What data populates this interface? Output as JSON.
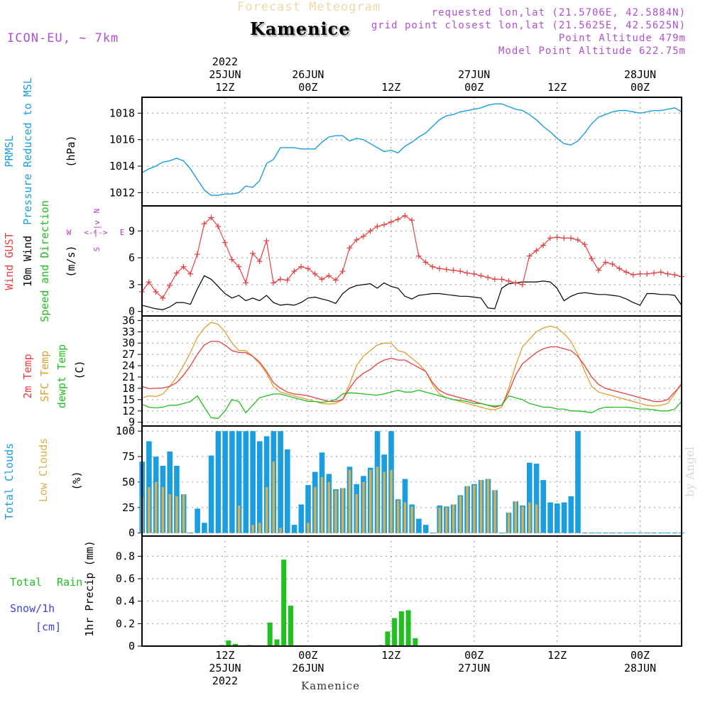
{
  "header": {
    "model": "ICON-EU, ~ 7km",
    "product": "Forecast Meteogram",
    "location": "Kamenice",
    "requested": "requested lon,lat (21.5706E, 42.5884N)",
    "gridpoint": "grid point closest lon,lat (21.5625E, 42.5625N)",
    "point_altitude": "Point Altitude 479m",
    "model_altitude": "Model Point Altitude 622.75m",
    "footer_location": "Kamenice",
    "watermark": "by Angel"
  },
  "time_axis": {
    "start_hour": 0,
    "end_hour": 78,
    "unit": "hours from 2022-06-25 00Z",
    "top_ticks": [
      {
        "hour": 12,
        "lines": [
          "2022",
          "25JUN",
          "12Z"
        ]
      },
      {
        "hour": 24,
        "lines": [
          "26JUN",
          "00Z"
        ]
      },
      {
        "hour": 36,
        "lines": [
          "12Z"
        ]
      },
      {
        "hour": 48,
        "lines": [
          "27JUN",
          "00Z"
        ]
      },
      {
        "hour": 60,
        "lines": [
          "12Z"
        ]
      },
      {
        "hour": 72,
        "lines": [
          "28JUN",
          "00Z"
        ]
      }
    ],
    "bottom_ticks": [
      {
        "hour": 12,
        "lines": [
          "12Z",
          "25JUN",
          "2022"
        ]
      },
      {
        "hour": 24,
        "lines": [
          "00Z",
          "26JUN"
        ]
      },
      {
        "hour": 36,
        "lines": [
          "12Z"
        ]
      },
      {
        "hour": 48,
        "lines": [
          "00Z",
          "27JUN"
        ]
      },
      {
        "hour": 60,
        "lines": [
          "12Z"
        ]
      },
      {
        "hour": 72,
        "lines": [
          "00Z",
          "28JUN"
        ]
      }
    ]
  },
  "chart_data": [
    {
      "type": "line",
      "name": "pressure",
      "labels": {
        "title1": "PRMSL",
        "title2": "Pressure Reduced to MSL",
        "unit": "(hPa)"
      },
      "ylim": [
        1011,
        1019.2
      ],
      "yticks": [
        1012,
        1014,
        1016,
        1018
      ],
      "colors": {
        "line": "#1a9ee0"
      },
      "x": [
        0,
        1,
        2,
        3,
        4,
        5,
        6,
        7,
        8,
        9,
        10,
        11,
        12,
        13,
        14,
        15,
        16,
        17,
        18,
        19,
        20,
        21,
        22,
        23,
        24,
        25,
        26,
        27,
        28,
        29,
        30,
        31,
        32,
        33,
        34,
        35,
        36,
        37,
        38,
        39,
        40,
        41,
        42,
        43,
        44,
        45,
        46,
        47,
        48,
        49,
        50,
        51,
        52,
        53,
        54,
        55,
        56,
        57,
        58,
        59,
        60,
        61,
        62,
        63,
        64,
        65,
        66,
        67,
        68,
        69,
        70,
        71,
        72,
        73,
        74,
        75,
        76,
        77,
        78
      ],
      "y": [
        1013.5,
        1013.8,
        1014.0,
        1014.3,
        1014.4,
        1014.6,
        1014.4,
        1013.8,
        1013.0,
        1012.2,
        1011.8,
        1011.8,
        1011.9,
        1011.9,
        1012.0,
        1012.5,
        1012.4,
        1012.9,
        1014.2,
        1014.5,
        1015.4,
        1015.4,
        1015.4,
        1015.3,
        1015.3,
        1015.3,
        1015.8,
        1016.2,
        1016.3,
        1016.3,
        1015.9,
        1016.1,
        1016.0,
        1015.7,
        1015.4,
        1015.1,
        1015.2,
        1015.0,
        1015.5,
        1015.8,
        1016.2,
        1016.5,
        1017.0,
        1017.5,
        1017.8,
        1017.9,
        1018.1,
        1018.2,
        1018.3,
        1018.4,
        1018.6,
        1018.7,
        1018.7,
        1018.5,
        1018.3,
        1018.2,
        1017.9,
        1017.5,
        1017.0,
        1016.6,
        1016.1,
        1015.7,
        1015.6,
        1015.9,
        1016.5,
        1017.2,
        1017.7,
        1017.9,
        1018.1,
        1018.2,
        1018.2,
        1018.1,
        1018.0,
        1018.1,
        1018.2,
        1018.2,
        1018.3,
        1018.4,
        1018.1
      ]
    },
    {
      "type": "line",
      "name": "wind",
      "labels": {
        "title1": "Wind GUST",
        "title2": "10m Wind",
        "title3": "Speed and Direction",
        "unit": "(m/s)",
        "compass_w": "W",
        "compass_e": "E",
        "compass_n": "N",
        "compass_s": "S",
        "compass_mid": "<-|->",
        "compass_v": "^|v"
      },
      "ylim": [
        -0.5,
        11.8
      ],
      "yticks": [
        0,
        3,
        6,
        9
      ],
      "colors": {
        "gust": "#e84040",
        "wind": "#000000",
        "compass": "#b040c0"
      },
      "x": [
        0,
        1,
        2,
        3,
        4,
        5,
        6,
        7,
        8,
        9,
        10,
        11,
        12,
        13,
        14,
        15,
        16,
        17,
        18,
        19,
        20,
        21,
        22,
        23,
        24,
        25,
        26,
        27,
        28,
        29,
        30,
        31,
        32,
        33,
        34,
        35,
        36,
        37,
        38,
        39,
        40,
        41,
        42,
        43,
        44,
        45,
        46,
        47,
        48,
        49,
        50,
        51,
        52,
        53,
        54,
        55,
        56,
        57,
        58,
        59,
        60,
        61,
        62,
        63,
        64,
        65,
        66,
        67,
        68,
        69,
        70,
        71,
        72,
        73,
        74,
        75,
        76,
        77,
        78
      ],
      "gust": [
        2.2,
        3.3,
        2.2,
        1.5,
        2.9,
        4.3,
        5.0,
        4.2,
        6.4,
        9.8,
        10.5,
        9.5,
        7.7,
        5.8,
        5.0,
        3.2,
        6.5,
        5.6,
        7.9,
        3.2,
        3.6,
        3.5,
        4.5,
        5.0,
        4.8,
        4.2,
        3.6,
        4.0,
        3.5,
        4.5,
        7.1,
        8.0,
        8.4,
        9.0,
        9.5,
        9.7,
        10.0,
        10.3,
        10.7,
        10.2,
        6.2,
        5.5,
        5.0,
        4.8,
        4.7,
        4.6,
        4.5,
        4.3,
        4.2,
        4.0,
        3.8,
        3.6,
        3.6,
        3.4,
        3.2,
        3.0,
        6.2,
        6.8,
        7.4,
        8.2,
        8.3,
        8.2,
        8.2,
        8.0,
        7.5,
        5.9,
        4.6,
        5.5,
        5.3,
        4.8,
        4.4,
        4.1,
        4.2,
        4.2,
        4.3,
        4.4,
        4.2,
        4.1,
        3.9
      ],
      "wind": [
        0.7,
        0.5,
        0.3,
        0.2,
        0.5,
        1.0,
        1.0,
        0.8,
        2.5,
        4.0,
        3.6,
        2.8,
        2.0,
        1.5,
        1.8,
        1.2,
        1.5,
        1.2,
        1.8,
        1.0,
        0.7,
        0.8,
        0.7,
        1.0,
        1.5,
        1.6,
        1.4,
        1.2,
        0.9,
        2.0,
        2.6,
        2.9,
        3.0,
        3.1,
        2.6,
        3.2,
        2.8,
        2.6,
        1.7,
        1.4,
        1.8,
        1.9,
        2.0,
        2.0,
        1.9,
        1.8,
        1.7,
        1.7,
        1.6,
        1.5,
        0.4,
        0.3,
        2.6,
        3.1,
        3.2,
        3.3,
        3.3,
        3.3,
        3.4,
        3.3,
        2.6,
        1.2,
        1.7,
        2.0,
        2.1,
        2.0,
        1.9,
        1.9,
        1.8,
        1.7,
        1.4,
        1.0,
        0.7,
        2.0,
        2.0,
        1.9,
        1.9,
        1.8,
        0.7
      ]
    },
    {
      "type": "line",
      "name": "temperature",
      "labels": {
        "title1": "2m Temp",
        "title2": "SFC Temp",
        "title3": "dewpt Temp",
        "unit": "(C)"
      },
      "ylim": [
        8,
        37.2
      ],
      "yticks": [
        9,
        12,
        15,
        18,
        21,
        24,
        27,
        30,
        33,
        36
      ],
      "colors": {
        "t2m": "#e84040",
        "tsfc": "#e0a030",
        "dewpt": "#20c020"
      },
      "x": [
        0,
        1,
        2,
        3,
        4,
        5,
        6,
        7,
        8,
        9,
        10,
        11,
        12,
        13,
        14,
        15,
        16,
        17,
        18,
        19,
        20,
        21,
        22,
        23,
        24,
        25,
        26,
        27,
        28,
        29,
        30,
        31,
        32,
        33,
        34,
        35,
        36,
        37,
        38,
        39,
        40,
        41,
        42,
        43,
        44,
        45,
        46,
        47,
        48,
        49,
        50,
        51,
        52,
        53,
        54,
        55,
        56,
        57,
        58,
        59,
        60,
        61,
        62,
        63,
        64,
        65,
        66,
        67,
        68,
        69,
        70,
        71,
        72,
        73,
        74,
        75,
        76,
        77,
        78
      ],
      "t2m": [
        18.5,
        17.9,
        18.0,
        18.1,
        18.5,
        19.5,
        21.5,
        24.0,
        27.0,
        29.5,
        30.5,
        30.5,
        29.5,
        28.0,
        27.5,
        27.5,
        26.5,
        25.0,
        22.5,
        19.5,
        18.0,
        17.0,
        16.5,
        16.3,
        16.0,
        15.5,
        15.0,
        14.5,
        14.5,
        15.0,
        18.0,
        20.5,
        22.0,
        23.0,
        24.5,
        25.5,
        26.0,
        25.5,
        25.5,
        24.5,
        23.5,
        22.5,
        19.5,
        17.5,
        16.5,
        16.0,
        15.5,
        15.0,
        14.5,
        14.0,
        13.5,
        13.0,
        13.5,
        17.0,
        21.5,
        24.5,
        26.0,
        27.5,
        28.5,
        29.0,
        29.0,
        28.5,
        28.0,
        26.5,
        24.0,
        21.0,
        19.0,
        18.0,
        17.5,
        17.0,
        16.5,
        16.0,
        15.5,
        15.0,
        14.5,
        14.5,
        15.0,
        17.0,
        19.0
      ],
      "tsfc": [
        15.5,
        16.0,
        15.8,
        16.5,
        18.5,
        21.0,
        24.0,
        27.5,
        31.5,
        34.0,
        35.5,
        35.0,
        33.0,
        30.0,
        28.0,
        28.0,
        26.5,
        24.5,
        22.0,
        18.5,
        17.0,
        16.5,
        16.0,
        15.5,
        15.0,
        14.5,
        14.0,
        13.8,
        14.0,
        15.0,
        19.0,
        24.0,
        26.5,
        28.0,
        29.5,
        30.0,
        30.0,
        28.0,
        27.5,
        26.0,
        24.5,
        22.5,
        19.0,
        16.5,
        15.5,
        15.0,
        14.5,
        14.0,
        13.5,
        13.0,
        12.5,
        12.3,
        13.0,
        18.0,
        24.0,
        29.0,
        31.0,
        33.0,
        34.0,
        34.5,
        34.0,
        32.5,
        30.5,
        27.0,
        22.5,
        18.5,
        17.0,
        16.5,
        16.0,
        15.5,
        15.0,
        14.5,
        14.0,
        13.5,
        13.3,
        13.5,
        14.0,
        16.5,
        19.5
      ],
      "dewpt": [
        13.8,
        13.0,
        12.8,
        13.0,
        13.5,
        13.5,
        14.0,
        14.5,
        16.0,
        13.0,
        10.2,
        10.0,
        12.0,
        15.0,
        14.5,
        11.5,
        13.5,
        15.5,
        16.0,
        16.5,
        16.5,
        16.0,
        15.5,
        15.0,
        14.5,
        14.5,
        14.3,
        14.5,
        15.0,
        16.5,
        16.8,
        16.7,
        16.5,
        16.3,
        16.2,
        16.5,
        17.0,
        17.5,
        17.0,
        17.0,
        17.5,
        17.0,
        16.5,
        16.0,
        15.5,
        15.0,
        14.8,
        14.5,
        14.0,
        14.0,
        13.5,
        13.3,
        13.5,
        16.0,
        15.5,
        15.0,
        14.0,
        13.5,
        13.0,
        13.0,
        12.5,
        12.5,
        12.0,
        12.0,
        11.8,
        11.5,
        12.5,
        13.0,
        13.0,
        13.0,
        13.0,
        12.8,
        12.5,
        12.5,
        12.3,
        12.0,
        12.0,
        12.5,
        14.5
      ]
    },
    {
      "type": "bar",
      "name": "clouds",
      "labels": {
        "title1": "Total Clouds",
        "title2": "Low Clouds",
        "unit": "(%)"
      },
      "ylim": [
        -3,
        105
      ],
      "yticks": [
        0,
        25,
        50,
        75,
        100
      ],
      "colors": {
        "total": "#1a9ee0",
        "low": "#d8b050"
      },
      "x": [
        0,
        1,
        2,
        3,
        4,
        5,
        6,
        7,
        8,
        9,
        10,
        11,
        12,
        13,
        14,
        15,
        16,
        17,
        18,
        19,
        20,
        21,
        22,
        23,
        24,
        25,
        26,
        27,
        28,
        29,
        30,
        31,
        32,
        33,
        34,
        35,
        36,
        37,
        38,
        39,
        40,
        41,
        42,
        43,
        44,
        45,
        46,
        47,
        48,
        49,
        50,
        51,
        52,
        53,
        54,
        55,
        56,
        57,
        58,
        59,
        60,
        61,
        62,
        63,
        64,
        65,
        66,
        67,
        68,
        69,
        70,
        71,
        72,
        73,
        74,
        75,
        76,
        77,
        78
      ],
      "total": [
        70,
        90,
        75,
        66,
        80,
        66,
        38,
        0,
        24,
        10,
        76,
        100,
        100,
        100,
        100,
        100,
        100,
        90,
        95,
        100,
        100,
        82,
        8,
        28,
        47,
        60,
        79,
        58,
        43,
        44,
        65,
        48,
        56,
        64,
        100,
        77,
        100,
        33,
        53,
        28,
        14,
        8,
        0,
        27,
        26,
        28,
        37,
        46,
        48,
        52,
        53,
        42,
        0,
        20,
        31,
        27,
        69,
        68,
        52,
        30,
        29,
        30,
        36,
        100,
        0,
        0,
        0,
        0,
        0,
        0,
        0,
        0,
        0,
        0,
        0,
        0,
        0,
        0,
        0
      ],
      "low": [
        35,
        45,
        50,
        45,
        38,
        36,
        38,
        0,
        0,
        0,
        0,
        0,
        0,
        0,
        27,
        0,
        8,
        10,
        45,
        70,
        5,
        0,
        0,
        0,
        10,
        45,
        55,
        50,
        42,
        44,
        62,
        38,
        50,
        62,
        65,
        60,
        62,
        32,
        30,
        26,
        0,
        0,
        0,
        25,
        25,
        28,
        36,
        46,
        47,
        52,
        53,
        42,
        0,
        20,
        31,
        26,
        30,
        28,
        0,
        0,
        0,
        0,
        0,
        0,
        0,
        0,
        0,
        0,
        0,
        0,
        0,
        0,
        0,
        0,
        0,
        0,
        0,
        0,
        0
      ]
    },
    {
      "type": "bar",
      "name": "precip",
      "labels": {
        "title_total": "Total",
        "title_rain": "Rain",
        "title_snow": "Snow/1h",
        "title_cm": "[cm]",
        "unit": "1hr Precip (mm)"
      },
      "ylim": [
        0,
        0.98
      ],
      "yticks": [
        0,
        0.2,
        0.4,
        0.6,
        0.8
      ],
      "ytick_labels": [
        "0",
        "0.2",
        "0.4",
        "0.6",
        "0.8"
      ],
      "colors": {
        "rain": "#20c020"
      },
      "x": [
        11,
        12,
        13,
        15,
        18,
        19,
        20,
        21,
        31,
        34,
        35,
        36,
        37,
        38,
        39
      ],
      "values": [
        0.01,
        0.05,
        0.02,
        0.01,
        0.21,
        0.06,
        0.77,
        0.36,
        0.005,
        0.01,
        0.13,
        0.25,
        0.31,
        0.32,
        0.07
      ]
    }
  ]
}
